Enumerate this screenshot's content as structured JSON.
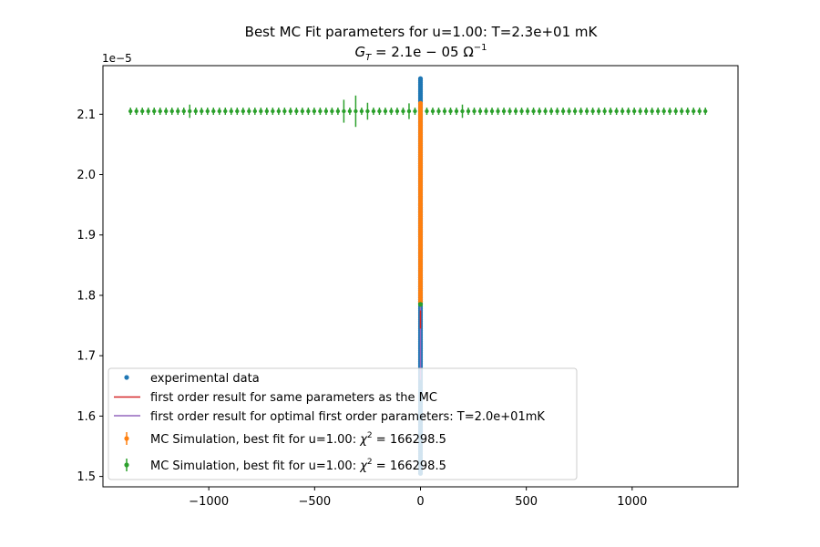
{
  "chart_data": {
    "type": "scatter",
    "title_line1": "Best MC Fit parameters for u=1.00:  T=2.3e+01 mK",
    "title_line2_main": "G",
    "title_line2_sub": "T",
    "title_line2_rest": " = 2.1e − 05 Ω",
    "title_line2_sup": "−1",
    "offset_label": "1e−5",
    "xlabel": "",
    "ylabel": "",
    "xlim": [
      -1500,
      1500
    ],
    "ylim": [
      1.4828,
      2.1805
    ],
    "x_ticks": [
      -1000,
      -500,
      0,
      500,
      1000
    ],
    "x_tick_labels": [
      "−1000",
      "−500",
      "0",
      "500",
      "1000"
    ],
    "y_ticks": [
      1.5,
      1.6,
      1.7,
      1.8,
      1.9,
      2.0,
      2.1
    ],
    "y_tick_labels": [
      "1.5",
      "1.6",
      "1.7",
      "1.8",
      "1.9",
      "2.0",
      "2.1"
    ],
    "grid": false,
    "legend_position": "lower-left",
    "legend": [
      {
        "label": "experimental data",
        "kind": "marker",
        "color": "#1f77b4"
      },
      {
        "label": "first order result for same parameters as the MC",
        "kind": "line",
        "color": "#d62728"
      },
      {
        "label": "first order result for optimal first order parameters: T=2.0e+01mK",
        "kind": "line",
        "color": "#9467bd"
      },
      {
        "label_prefix": "MC Simulation, best fit for u=1.00:  ",
        "label_chi": "χ",
        "label_sup": "2",
        "label_value": " = 166298.5",
        "kind": "errorbar",
        "color": "#ff7f0e"
      },
      {
        "label_prefix": "MC Simulation, best fit for u=1.00:  ",
        "label_chi": "χ",
        "label_sup": "2",
        "label_value": " = 166298.5",
        "kind": "errorbar",
        "color": "#2ca02c"
      }
    ],
    "series": [
      {
        "name": "experimental data",
        "style": "points",
        "color": "#1f77b4",
        "x": 0,
        "y_from": 1.505,
        "y_to": 2.16,
        "y_step": 0.003
      },
      {
        "name": "first order result for same parameters as the MC",
        "style": "line",
        "color": "#d62728",
        "x": [
          0,
          0
        ],
        "y": [
          1.745,
          1.775
        ]
      },
      {
        "name": "first order result for optimal first order parameters: T=2.0e+01mK",
        "style": "line",
        "color": "#9467bd",
        "x": [
          0,
          0
        ],
        "y": [
          1.66,
          1.785
        ]
      },
      {
        "name": "MC Simulation, best fit for u=1.00:  χ2 = 166298.5",
        "style": "errorbar",
        "color": "#ff7f0e",
        "x": 0,
        "y_from": 1.79,
        "y_to": 2.12,
        "y_step": 0.004,
        "yerr": 0.003
      },
      {
        "name": "MC Simulation, best fit for u=1.00:  χ2 = 166298.5",
        "style": "errorbar",
        "color": "#2ca02c",
        "x_from": -1370,
        "x_to": 1370,
        "x_step": 28,
        "y": 2.105,
        "yerr_base": 0.006,
        "yerr_peaks": [
          {
            "x": -310,
            "yerr": 0.026
          },
          {
            "x": -370,
            "yerr": 0.019
          },
          {
            "x": -240,
            "yerr": 0.014
          },
          {
            "x": -60,
            "yerr": 0.013
          },
          {
            "x": -1100,
            "yerr": 0.011
          },
          {
            "x": 520,
            "yerr": 0.016
          },
          {
            "x": 210,
            "yerr": 0.011
          }
        ],
        "extra_points": [
          {
            "x": 0,
            "y": 1.785
          }
        ]
      }
    ]
  }
}
